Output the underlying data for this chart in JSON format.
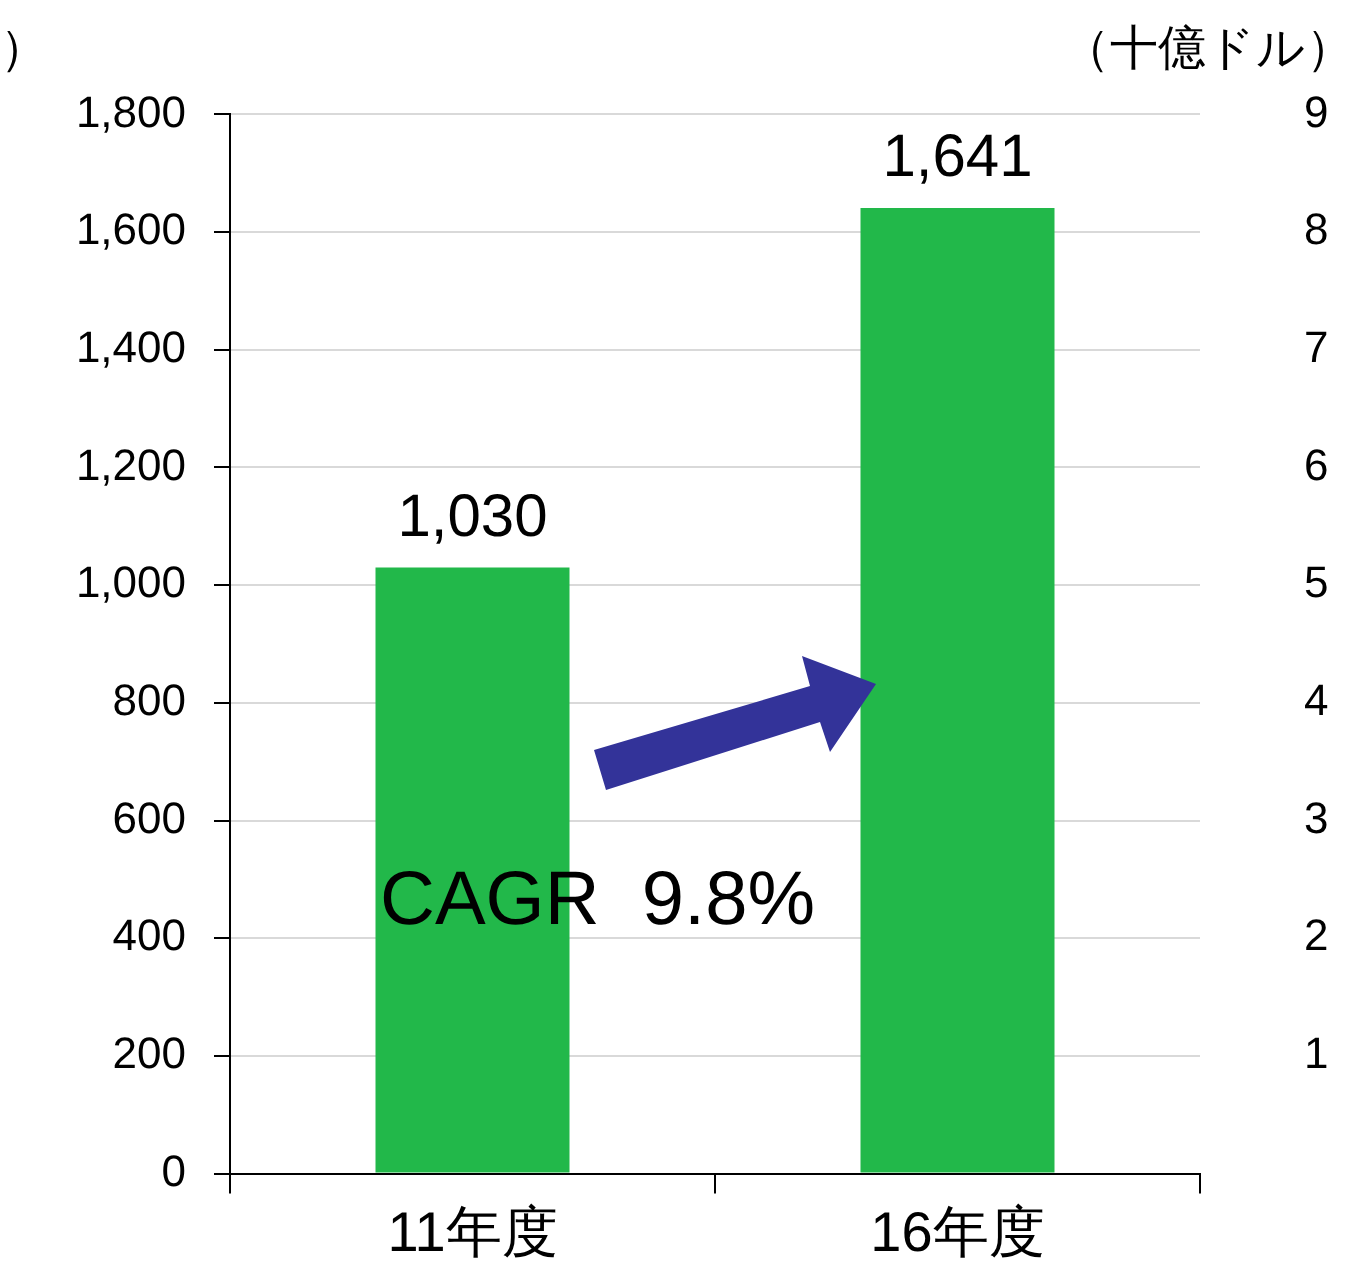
{
  "chart_data": {
    "type": "bar",
    "categories": [
      "11年度",
      "16年度"
    ],
    "values": [
      1030,
      1641
    ],
    "value_labels": [
      "1,030",
      "1,641"
    ],
    "color": "#22b84a",
    "ylabel": "）",
    "y2label": "（十億ドル）",
    "ylim": [
      0,
      1800
    ],
    "yticks": [
      0,
      200,
      400,
      600,
      800,
      {
        "value": 1000,
        "label": "1,000"
      },
      {
        "value": 1200,
        "label": "1,200"
      },
      {
        "value": 1400,
        "label": "1,400"
      },
      {
        "value": 1600,
        "label": "1,600"
      },
      {
        "value": 1800,
        "label": "1,800"
      }
    ],
    "y2lim": [
      0,
      9
    ],
    "y2ticks": [
      1,
      2,
      3,
      4,
      5,
      6,
      7,
      8,
      9
    ],
    "grid": "y",
    "legend": false,
    "annotations": [
      "CAGR  9.8%"
    ]
  }
}
